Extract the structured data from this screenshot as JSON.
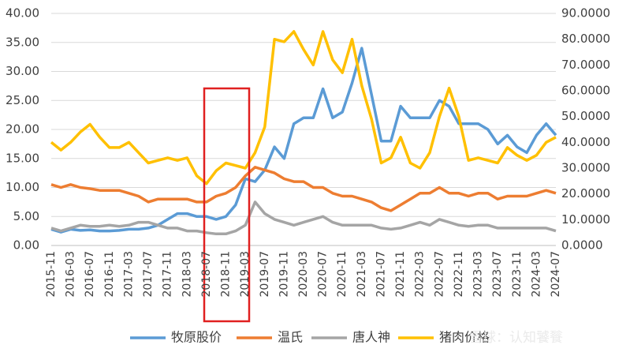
{
  "chart_data": {
    "type": "line",
    "categories": [
      "2015-11",
      null,
      "2016-03",
      null,
      "2016-07",
      null,
      "2016-11",
      null,
      "2017-03",
      null,
      "2017-07",
      null,
      "2017-11",
      null,
      "2018-03",
      null,
      "2018-07",
      null,
      "2018-11",
      null,
      "2019-03",
      null,
      "2019-07",
      null,
      "2019-11",
      null,
      "2020-03",
      null,
      "2020-07",
      null,
      "2020-11",
      null,
      "2021-03",
      null,
      "2021-07",
      null,
      "2021-11",
      null,
      "2022-03",
      null,
      "2022-07",
      null,
      "2022-11",
      null,
      "2023-03",
      null,
      "2023-07",
      null,
      "2023-11",
      null,
      "2024-03",
      null,
      "2024-07"
    ],
    "series": [
      {
        "name": "牧原股价",
        "color": "#5b9bd5",
        "values": [
          2.8,
          2.3,
          2.8,
          2.6,
          2.7,
          2.5,
          2.5,
          2.6,
          2.8,
          2.8,
          3,
          3.5,
          4.5,
          5.5,
          5.5,
          5,
          5,
          4.5,
          5,
          7,
          11.5,
          11,
          13,
          17,
          15,
          21,
          22,
          22,
          27,
          22,
          23,
          28,
          34,
          26,
          18,
          18,
          24,
          22,
          22,
          22,
          25,
          24,
          21,
          21,
          21,
          20,
          17.5,
          19,
          17,
          16,
          19,
          21,
          19
        ]
      },
      {
        "name": "温氏",
        "color": "#ed7d31",
        "values": [
          10.5,
          10,
          10.5,
          10,
          9.8,
          9.5,
          9.5,
          9.5,
          9,
          8.5,
          7.5,
          8,
          8,
          8,
          8,
          7.5,
          7.5,
          8.5,
          9,
          10,
          12,
          13.5,
          13,
          12.5,
          11.5,
          11,
          11,
          10,
          10,
          9,
          8.5,
          8.5,
          8,
          7.5,
          6.5,
          6,
          7,
          8,
          9,
          9,
          10,
          9,
          9,
          8.5,
          9,
          9,
          8,
          8.5,
          8.5,
          8.5,
          9,
          9.5,
          9
        ]
      },
      {
        "name": "唐人神",
        "color": "#a5a5a5",
        "values": [
          3,
          2.5,
          3,
          3.5,
          3.3,
          3.3,
          3.5,
          3.3,
          3.5,
          4,
          4,
          3.5,
          3,
          3,
          2.5,
          2.5,
          2.2,
          2,
          2,
          2.5,
          3.5,
          7.5,
          5.5,
          4.5,
          4,
          3.5,
          4,
          4.5,
          5,
          4,
          3.5,
          3.5,
          3.5,
          3.5,
          3,
          2.8,
          3,
          3.5,
          4,
          3.5,
          4.5,
          4,
          3.5,
          3.3,
          3.5,
          3.5,
          3,
          3,
          3,
          3,
          3,
          3,
          2.5
        ]
      },
      {
        "name": "猪肉价格",
        "color": "#ffc000",
        "axis": "y2",
        "values": [
          40,
          37,
          40,
          44,
          47,
          42,
          38,
          38,
          40,
          36,
          32,
          33,
          34,
          33,
          34,
          27,
          24,
          29,
          32,
          31,
          30,
          36,
          46,
          80,
          79,
          83,
          76,
          70,
          83,
          72,
          67,
          80,
          62,
          49,
          32,
          34,
          42,
          32,
          30,
          36,
          50,
          61,
          50,
          33,
          34,
          33,
          32,
          38,
          35,
          33,
          35,
          40,
          42
        ]
      }
    ],
    "ylim": [
      0,
      40
    ],
    "yticks": [
      {
        "value": 0,
        "label": "0.00"
      },
      {
        "value": 5,
        "label": "5.00"
      },
      {
        "value": 10,
        "label": "10.00"
      },
      {
        "value": 15,
        "label": "15.00"
      },
      {
        "value": 20,
        "label": "20.00"
      },
      {
        "value": 25,
        "label": "25.00"
      },
      {
        "value": 30,
        "label": "30.00"
      },
      {
        "value": 35,
        "label": "35.00"
      },
      {
        "value": 40,
        "label": "40.00"
      }
    ],
    "y2lim": [
      0,
      90
    ],
    "y2ticks": [
      {
        "value": 0,
        "label": "0.0000"
      },
      {
        "value": 10,
        "label": "10.0000"
      },
      {
        "value": 20,
        "label": "20.0000"
      },
      {
        "value": 30,
        "label": "30.0000"
      },
      {
        "value": 40,
        "label": "40.0000"
      },
      {
        "value": 50,
        "label": "50.0000"
      },
      {
        "value": 60,
        "label": "60.0000"
      },
      {
        "value": 70,
        "label": "70.0000"
      },
      {
        "value": 80,
        "label": "80.0000"
      },
      {
        "value": 90,
        "label": "90.0000"
      }
    ],
    "grid": true,
    "legend": "bottom",
    "watermark": "雪球：认知饕餮"
  }
}
